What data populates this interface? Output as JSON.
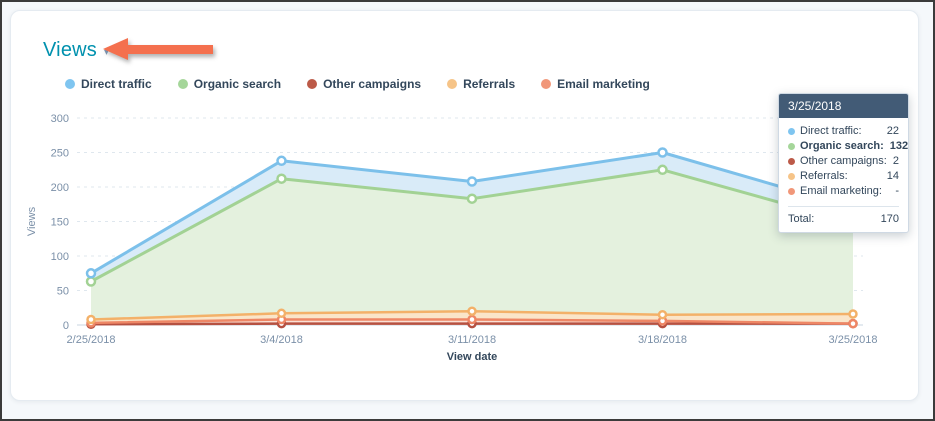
{
  "header": {
    "title": "Views",
    "caret": "▾"
  },
  "chart_data": {
    "type": "area",
    "stacked": true,
    "title": "Views",
    "xlabel": "View date",
    "ylabel": "Views",
    "ylim": [
      0,
      300
    ],
    "yticks": [
      0,
      50,
      100,
      150,
      200,
      250,
      300
    ],
    "grid": "dashed-horizontal",
    "legend_position": "top",
    "categories": [
      "2/25/2018",
      "3/4/2018",
      "3/11/2018",
      "3/18/2018",
      "3/25/2018"
    ],
    "series": [
      {
        "name": "Direct traffic",
        "color": "#7cc0ea",
        "fill": "#d9ebf8",
        "dot": "#7fc5f0",
        "values": [
          12,
          26,
          25,
          25,
          22
        ]
      },
      {
        "name": "Organic search",
        "color": "#a2d294",
        "fill": "#e4f1de",
        "dot": "#a5d69a",
        "values": [
          55,
          195,
          163,
          210,
          132
        ]
      },
      {
        "name": "Other campaigns",
        "color": "#b65141",
        "fill": "#f2d9d3",
        "dot": "#bc5a48",
        "values": [
          1,
          2,
          2,
          2,
          2
        ]
      },
      {
        "name": "Referrals",
        "color": "#f3b169",
        "fill": "#fae5c9",
        "dot": "#f6c488",
        "values": [
          5,
          9,
          12,
          9,
          14
        ]
      },
      {
        "name": "Email marketing",
        "color": "#ee8766",
        "fill": "#fbe0d4",
        "dot": "#f19779",
        "values": [
          2,
          6,
          6,
          4,
          0
        ]
      }
    ],
    "stack_order_bottom_to_top": [
      "Other campaigns",
      "Email marketing",
      "Referrals",
      "Organic search",
      "Direct traffic"
    ],
    "stack_totals": [
      75,
      238,
      208,
      250,
      170
    ],
    "highlight": {
      "category": "3/25/2018",
      "series": "Organic search"
    }
  },
  "tooltip": {
    "date": "3/25/2018",
    "rows": [
      {
        "label": "Direct traffic:",
        "value": "22",
        "color": "#7fc5f0",
        "bold": false
      },
      {
        "label": "Organic search:",
        "value": "132",
        "color": "#a5d69a",
        "bold": true
      },
      {
        "label": "Other campaigns:",
        "value": "2",
        "color": "#bc5a48",
        "bold": false
      },
      {
        "label": "Referrals:",
        "value": "14",
        "color": "#f6c488",
        "bold": false
      },
      {
        "label": "Email marketing:",
        "value": "-",
        "color": "#f19779",
        "bold": false
      }
    ],
    "total_label": "Total:",
    "total_value": "170"
  }
}
